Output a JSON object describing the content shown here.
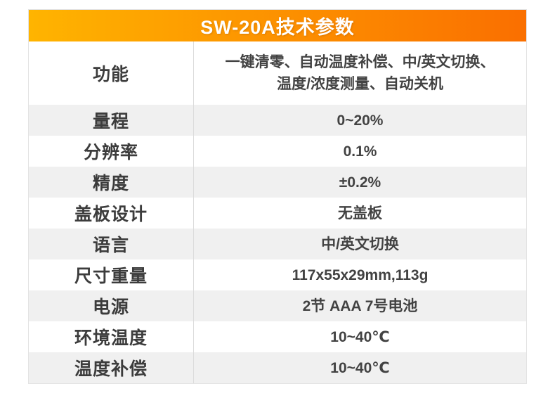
{
  "header": {
    "title": "SW-20A技术参数",
    "gradient_start": "#ffb400",
    "gradient_end": "#fa6f00",
    "text_color": "#ffffff"
  },
  "table": {
    "rows": [
      {
        "label": "功能",
        "value_lines": [
          "一键清零、自动温度补偿、中/英文切换、",
          "温度/浓度测量、自动关机"
        ]
      },
      {
        "label": "量程",
        "value": "0~20%"
      },
      {
        "label": "分辨率",
        "value": "0.1%"
      },
      {
        "label": "精度",
        "value": "±0.2%"
      },
      {
        "label": "盖板设计",
        "value": "无盖板"
      },
      {
        "label": "语言",
        "value": "中/英文切换"
      },
      {
        "label": "尺寸重量",
        "value": "117x55x29mm,113g"
      },
      {
        "label": "电源",
        "value": "2节 AAA 7号电池"
      },
      {
        "label": "环境温度",
        "value": "10~40℃"
      },
      {
        "label": "温度补偿",
        "value": "10~40℃"
      }
    ],
    "colors": {
      "row_shade": "#f0f0f0",
      "divider": "#dcdcdc",
      "text": "#3c3c3c"
    }
  }
}
